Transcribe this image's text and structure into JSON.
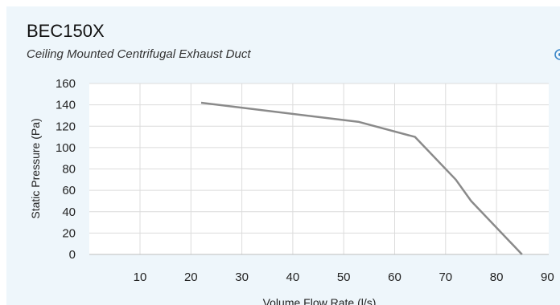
{
  "header": {
    "title": "BEC150X",
    "subtitle": "Ceiling Mounted Centrifugal Exhaust Duct"
  },
  "icons": {
    "settings": "settings-icon"
  },
  "colors": {
    "panel_background": "#eef6fb",
    "plot_background": "#ffffff",
    "grid": "#dcdcdc",
    "series_line": "#8a8a8a",
    "icon_accent": "#3a86c8"
  },
  "chart_data": {
    "type": "line",
    "title": "",
    "xlabel": "Volume Flow Rate (l/s)",
    "ylabel": "Static Pressure (Pa)",
    "xlim": [
      0,
      90
    ],
    "ylim": [
      0,
      160
    ],
    "xticks": [
      10,
      20,
      30,
      40,
      50,
      60,
      70,
      80,
      90
    ],
    "yticks": [
      0,
      20,
      40,
      60,
      80,
      100,
      120,
      140,
      160
    ],
    "grid": true,
    "legend": false,
    "series": [
      {
        "x": [
          22,
          53,
          64,
          72,
          75,
          85
        ],
        "y": [
          142,
          124,
          110,
          70,
          50,
          0
        ]
      }
    ]
  }
}
